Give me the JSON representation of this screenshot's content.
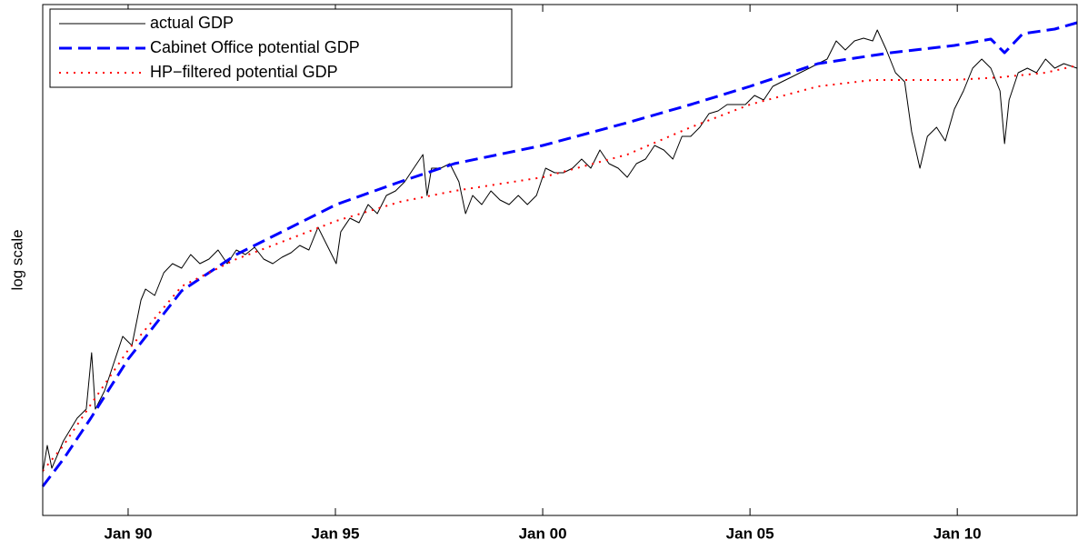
{
  "chart_data": {
    "type": "line",
    "y_label": "log scale",
    "log_scale": true,
    "legend": "upper left",
    "xlim": [
      1987.94,
      2012.89
    ],
    "ylim": [
      0,
      562
    ],
    "xticks": [
      {
        "value": 1990,
        "label": "Jan 90"
      },
      {
        "value": 1995,
        "label": "Jan 95"
      },
      {
        "value": 2000,
        "label": "Jan 00"
      },
      {
        "value": 2005,
        "label": "Jan 05"
      },
      {
        "value": 2010,
        "label": "Jan 10"
      }
    ],
    "series": [
      {
        "name": "actual GDP",
        "color": "#000000",
        "style": "solid",
        "x": [
          1987.94,
          1988.05,
          1988.16,
          1988.44,
          1988.77,
          1988.99,
          1989.12,
          1989.21,
          1989.43,
          1989.65,
          1989.87,
          1990.09,
          1990.31,
          1990.42,
          1990.64,
          1990.86,
          1991.07,
          1991.29,
          1991.51,
          1991.73,
          1991.95,
          1992.17,
          1992.39,
          1992.61,
          1992.83,
          1993.05,
          1993.27,
          1993.49,
          1993.71,
          1993.93,
          1994.14,
          1994.36,
          1994.58,
          1994.8,
          1995.02,
          1995.13,
          1995.35,
          1995.57,
          1995.79,
          1996.01,
          1996.23,
          1996.45,
          1996.67,
          1996.89,
          1997.11,
          1997.21,
          1997.32,
          1997.54,
          1997.76,
          1997.98,
          1998.14,
          1998.31,
          1998.53,
          1998.75,
          1998.97,
          1999.19,
          1999.41,
          1999.63,
          1999.85,
          2000.07,
          2000.29,
          2000.5,
          2000.72,
          2000.94,
          2001.16,
          2001.38,
          2001.6,
          2001.82,
          2002.04,
          2002.26,
          2002.48,
          2002.7,
          2002.92,
          2003.14,
          2003.36,
          2003.57,
          2003.79,
          2004.01,
          2004.23,
          2004.45,
          2004.67,
          2004.89,
          2005.11,
          2005.33,
          2005.55,
          2005.77,
          2005.99,
          2006.21,
          2006.43,
          2006.64,
          2006.86,
          2007.08,
          2007.3,
          2007.52,
          2007.74,
          2007.96,
          2008.07,
          2008.29,
          2008.51,
          2008.73,
          2008.9,
          2009.1,
          2009.28,
          2009.5,
          2009.71,
          2009.93,
          2010.15,
          2010.37,
          2010.59,
          2010.81,
          2011.03,
          2011.14,
          2011.25,
          2011.47,
          2011.69,
          2011.91,
          2012.13,
          2012.35,
          2012.57,
          2012.89
        ],
        "values": [
          47,
          77,
          52,
          82,
          107,
          117,
          179,
          117,
          137,
          167,
          197,
          187,
          237,
          249,
          242,
          267,
          277,
          272,
          287,
          277,
          282,
          292,
          277,
          292,
          287,
          295,
          282,
          277,
          284,
          289,
          297,
          292,
          317,
          297,
          277,
          312,
          327,
          322,
          342,
          332,
          352,
          357,
          367,
          382,
          397,
          352,
          382,
          382,
          387,
          367,
          332,
          352,
          342,
          357,
          347,
          342,
          352,
          342,
          352,
          382,
          377,
          377,
          382,
          392,
          382,
          402,
          387,
          382,
          372,
          387,
          392,
          407,
          402,
          392,
          417,
          417,
          427,
          442,
          445,
          452,
          452,
          452,
          462,
          457,
          472,
          477,
          482,
          487,
          492,
          497,
          502,
          522,
          512,
          522,
          525,
          522,
          534,
          512,
          487,
          477,
          422,
          382,
          417,
          427,
          412,
          447,
          467,
          492,
          502,
          492,
          467,
          409,
          457,
          487,
          492,
          487,
          502,
          492,
          497,
          492
        ]
      },
      {
        "name": "Cabinet Office potential GDP",
        "color": "#0000ff",
        "style": "dashed",
        "x": [
          1987.94,
          1988.44,
          1989.1,
          1990,
          1991.29,
          1992.61,
          1993.49,
          1995.02,
          1996.56,
          1997.87,
          2000,
          2002.04,
          2003.57,
          2005,
          2006.64,
          2008.4,
          2009.93,
          2010.81,
          2011.14,
          2011.58,
          2012.35,
          2012.89
        ],
        "values": [
          32,
          62,
          107,
          172,
          247,
          287,
          307,
          342,
          367,
          387,
          407,
          432,
          452,
          472,
          497,
          509,
          517,
          524,
          509,
          530,
          535,
          542
        ]
      },
      {
        "name": "HP−filtered potential GDP",
        "color": "#ff0000",
        "style": "dotted",
        "x": [
          1987.94,
          1988.44,
          1989.1,
          1990,
          1991.29,
          1992.61,
          1993.49,
          1995.02,
          1996.56,
          1997.87,
          2000,
          2002.04,
          2003.57,
          2005,
          2006.64,
          2007.96,
          2008.84,
          2009.93,
          2011.03,
          2012.13,
          2012.89
        ],
        "values": [
          49,
          77,
          122,
          182,
          252,
          282,
          297,
          324,
          345,
          357,
          372,
          397,
          427,
          452,
          472,
          479,
          479,
          479,
          482,
          487,
          495
        ]
      }
    ]
  }
}
